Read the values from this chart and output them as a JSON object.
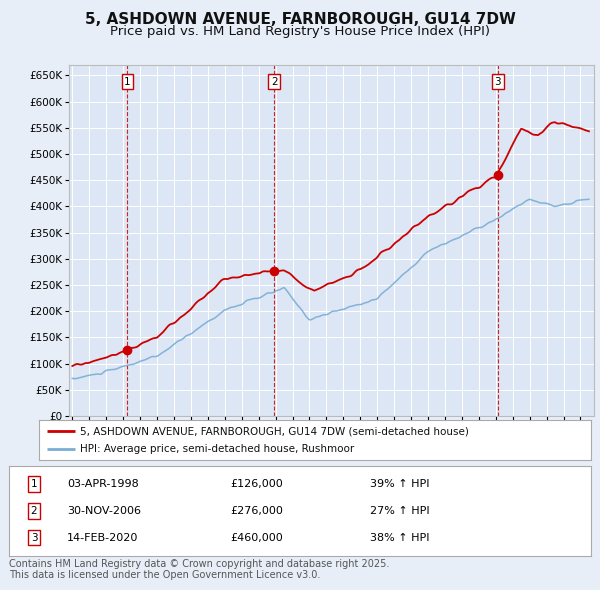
{
  "title": "5, ASHDOWN AVENUE, FARNBOROUGH, GU14 7DW",
  "subtitle": "Price paid vs. HM Land Registry's House Price Index (HPI)",
  "title_fontsize": 11,
  "subtitle_fontsize": 9.5,
  "bg_color": "#e8eef8",
  "plot_bg_color": "#dce6f4",
  "grid_color": "#ffffff",
  "ylim": [
    0,
    670000
  ],
  "yticks": [
    0,
    50000,
    100000,
    150000,
    200000,
    250000,
    300000,
    350000,
    400000,
    450000,
    500000,
    550000,
    600000,
    650000
  ],
  "ytick_labels": [
    "£0",
    "£50K",
    "£100K",
    "£150K",
    "£200K",
    "£250K",
    "£300K",
    "£350K",
    "£400K",
    "£450K",
    "£500K",
    "£550K",
    "£600K",
    "£650K"
  ],
  "xlim_start": 1994.8,
  "xlim_end": 2025.8,
  "hpi_color": "#7aadd4",
  "price_color": "#cc0000",
  "vline_color": "#cc0000",
  "sale_dates": [
    1998.253,
    2006.916,
    2020.12
  ],
  "sale_prices": [
    126000,
    276000,
    460000
  ],
  "sale_labels": [
    "1",
    "2",
    "3"
  ],
  "legend_entries": [
    "5, ASHDOWN AVENUE, FARNBOROUGH, GU14 7DW (semi-detached house)",
    "HPI: Average price, semi-detached house, Rushmoor"
  ],
  "table_rows": [
    [
      "1",
      "03-APR-1998",
      "£126,000",
      "39% ↑ HPI"
    ],
    [
      "2",
      "30-NOV-2006",
      "£276,000",
      "27% ↑ HPI"
    ],
    [
      "3",
      "14-FEB-2020",
      "£460,000",
      "38% ↑ HPI"
    ]
  ],
  "footnote": "Contains HM Land Registry data © Crown copyright and database right 2025.\nThis data is licensed under the Open Government Licence v3.0.",
  "footnote_fontsize": 7
}
